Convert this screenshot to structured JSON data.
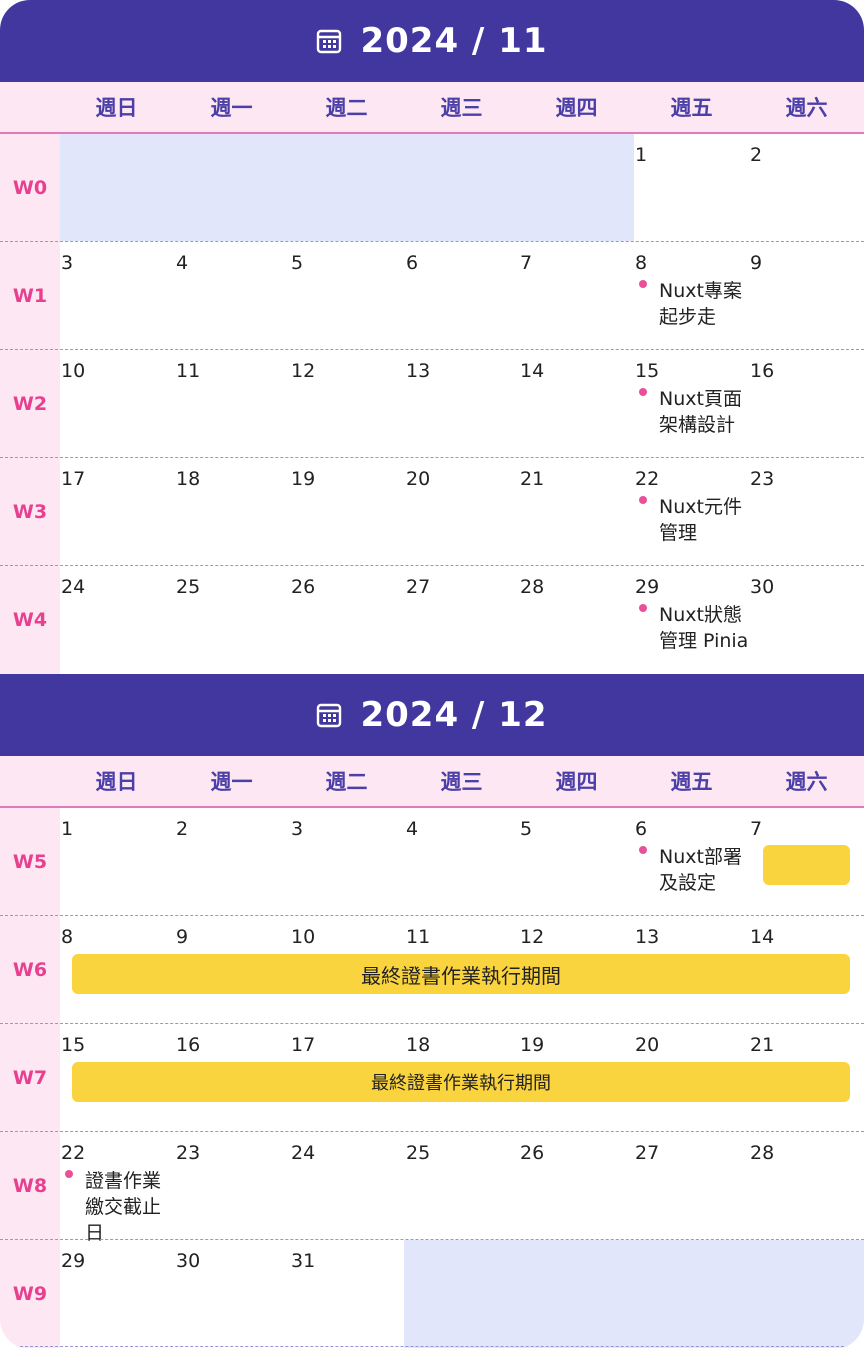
{
  "weekdays": [
    "週日",
    "週一",
    "週二",
    "週三",
    "週四",
    "週五",
    "週六"
  ],
  "nov": {
    "title": "2024 / 11",
    "weeks": [
      {
        "label": "W0",
        "days": [
          "",
          "",
          "",
          "",
          "",
          "1",
          "2"
        ]
      },
      {
        "label": "W1",
        "days": [
          "3",
          "4",
          "5",
          "6",
          "7",
          "8",
          "9"
        ]
      },
      {
        "label": "W2",
        "days": [
          "10",
          "11",
          "12",
          "13",
          "14",
          "15",
          "16"
        ]
      },
      {
        "label": "W3",
        "days": [
          "17",
          "18",
          "19",
          "20",
          "21",
          "22",
          "23"
        ]
      },
      {
        "label": "W4",
        "days": [
          "24",
          "25",
          "26",
          "27",
          "28",
          "29",
          "30"
        ]
      }
    ],
    "events": [
      {
        "line1": "Nuxt專案",
        "line2": "起步走"
      },
      {
        "line1": "Nuxt頁面",
        "line2": "架構設計"
      },
      {
        "line1": "Nuxt元件",
        "line2": "管理"
      },
      {
        "line1": "Nuxt狀態",
        "line2": "管理 Pinia"
      }
    ]
  },
  "dec": {
    "title": "2024 / 12",
    "weeks": [
      {
        "label": "W5",
        "days": [
          "1",
          "2",
          "3",
          "4",
          "5",
          "6",
          "7"
        ]
      },
      {
        "label": "W6",
        "days": [
          "8",
          "9",
          "10",
          "11",
          "12",
          "13",
          "14"
        ]
      },
      {
        "label": "W7",
        "days": [
          "15",
          "16",
          "17",
          "18",
          "19",
          "20",
          "21"
        ]
      },
      {
        "label": "W8",
        "days": [
          "22",
          "23",
          "24",
          "25",
          "26",
          "27",
          "28"
        ]
      },
      {
        "label": "W9",
        "days": [
          "29",
          "30",
          "31",
          "",
          "",
          "",
          ""
        ]
      }
    ],
    "event_w5": {
      "line1": "Nuxt部署",
      "line2": "及設定"
    },
    "bar_w6": "最終證書作業執行期間",
    "bar_w7": "最終證書作業執行期間",
    "event_w8": {
      "line1": "證書作業",
      "line2": "繳交截止",
      "line3": "日"
    }
  },
  "colors": {
    "header": "#42379e",
    "weekday_bg": "#fde7f3",
    "week_label": "#e83f8f",
    "blank_cell": "#e1e6fb",
    "event_dot": "#e8509a",
    "bar": "#fad43e"
  },
  "icons": {
    "calendar": "calendar-icon"
  }
}
